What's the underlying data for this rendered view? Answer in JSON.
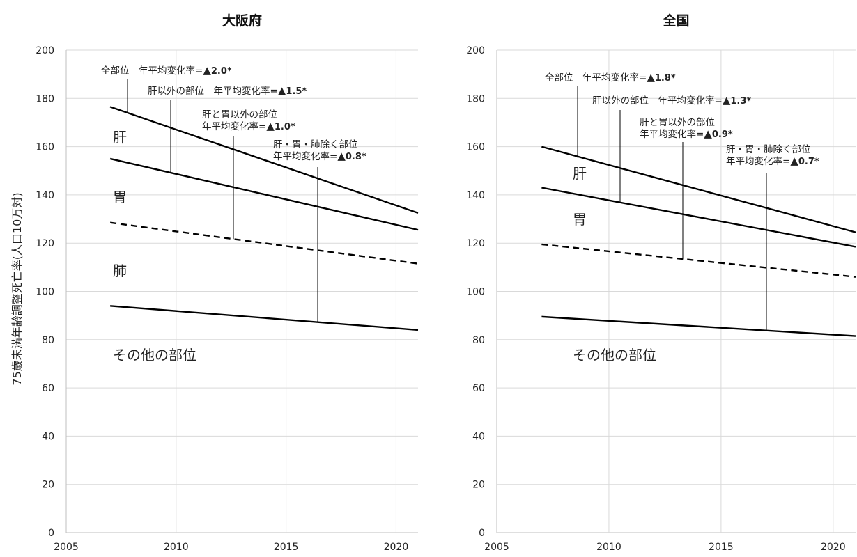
{
  "y_axis_label": "75歳未満年齢調整死亡率(人口10万対)",
  "chart_data": [
    {
      "type": "line",
      "title": "大阪府",
      "xlim": [
        2005,
        2021
      ],
      "ylim": [
        0,
        200
      ],
      "x_ticks": [
        "2005",
        "2010",
        "2015",
        "2020"
      ],
      "y_ticks": [
        "0",
        "20",
        "40",
        "60",
        "80",
        "100",
        "120",
        "140",
        "160",
        "180",
        "200"
      ],
      "grid": true,
      "series": [
        {
          "name": "全部位",
          "x": [
            2007,
            2021
          ],
          "y": [
            176.5,
            132.5
          ],
          "dash": false
        },
        {
          "name": "肝以外の部位",
          "x": [
            2007,
            2021
          ],
          "y": [
            155,
            125.5
          ],
          "dash": false
        },
        {
          "name": "肝と胃以外の部位",
          "x": [
            2007,
            2021
          ],
          "y": [
            128.5,
            111.5
          ],
          "dash": true
        },
        {
          "name": "肝・胃・肺除く部位",
          "x": [
            2007,
            2021
          ],
          "y": [
            94,
            84
          ],
          "dash": false
        }
      ],
      "annotations": [
        {
          "lines": [
            {
              "pre": "全部位　年平均変化率=",
              "sym": "▲",
              "val": "2.0*"
            }
          ]
        },
        {
          "lines": [
            {
              "pre": "肝以外の部位　年平均変化率=",
              "sym": "▲",
              "val": "1.5*"
            }
          ]
        },
        {
          "lines": [
            {
              "pre": "肝と胃以外の部位",
              "sym": "",
              "val": ""
            },
            {
              "pre": "年平均変化率=",
              "sym": "▲",
              "val": "1.0*"
            }
          ]
        },
        {
          "lines": [
            {
              "pre": "肝・胃・肺除く部位",
              "sym": "",
              "val": ""
            },
            {
              "pre": "年平均変化率=",
              "sym": "▲",
              "val": "0.8*"
            }
          ]
        }
      ],
      "region_labels": [
        "肝",
        "胃",
        "肺",
        "その他の部位"
      ]
    },
    {
      "type": "line",
      "title": "全国",
      "xlim": [
        2005,
        2021
      ],
      "ylim": [
        0,
        200
      ],
      "x_ticks": [
        "2005",
        "2010",
        "2015",
        "2020"
      ],
      "y_ticks": [
        "0",
        "20",
        "40",
        "60",
        "80",
        "100",
        "120",
        "140",
        "160",
        "180",
        "200"
      ],
      "grid": true,
      "series": [
        {
          "name": "全部位",
          "x": [
            2007,
            2021
          ],
          "y": [
            160,
            124.5
          ],
          "dash": false
        },
        {
          "name": "肝以外の部位",
          "x": [
            2007,
            2021
          ],
          "y": [
            143,
            118.5
          ],
          "dash": false
        },
        {
          "name": "肝と胃以外の部位",
          "x": [
            2007,
            2021
          ],
          "y": [
            119.5,
            106
          ],
          "dash": true
        },
        {
          "name": "肝・胃・肺除く部位",
          "x": [
            2007,
            2021
          ],
          "y": [
            89.5,
            81.5
          ],
          "dash": false
        }
      ],
      "annotations": [
        {
          "lines": [
            {
              "pre": "全部位　年平均変化率=",
              "sym": "▲",
              "val": "1.8*"
            }
          ]
        },
        {
          "lines": [
            {
              "pre": "肝以外の部位　年平均変化率=",
              "sym": "▲",
              "val": "1.3*"
            }
          ]
        },
        {
          "lines": [
            {
              "pre": "肝と胃以外の部位",
              "sym": "",
              "val": ""
            },
            {
              "pre": "年平均変化率=",
              "sym": "▲",
              "val": "0.9*"
            }
          ]
        },
        {
          "lines": [
            {
              "pre": "肝・胃・肺除く部位",
              "sym": "",
              "val": ""
            },
            {
              "pre": "年平均変化率=",
              "sym": "▲",
              "val": "0.7*"
            }
          ]
        }
      ],
      "region_labels": [
        "肝",
        "胃",
        "その他の部位"
      ]
    }
  ]
}
